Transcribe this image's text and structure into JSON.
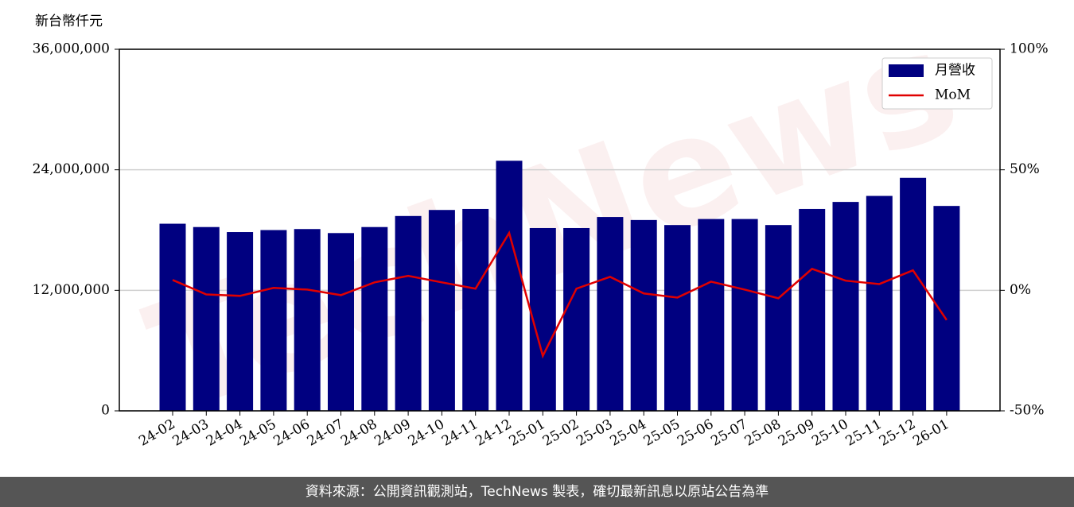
{
  "chart_data": {
    "type": "bar",
    "y_label": "新台幣仟元",
    "watermark": "TechNews",
    "categories": [
      "24-02",
      "24-03",
      "24-04",
      "24-05",
      "24-06",
      "24-07",
      "24-08",
      "24-09",
      "24-10",
      "24-11",
      "24-12",
      "25-01",
      "25-02",
      "25-03",
      "25-04",
      "25-05",
      "25-06",
      "25-07",
      "25-08",
      "25-09",
      "25-10",
      "25-11",
      "25-12",
      "26-01"
    ],
    "series": [
      {
        "name": "月營收",
        "color": "#000080",
        "type": "bar",
        "values": [
          18630000,
          18300000,
          17800000,
          18000000,
          18100000,
          17700000,
          18300000,
          19400000,
          20000000,
          20100000,
          24900000,
          18200000,
          18200000,
          19300000,
          19000000,
          18500000,
          19100000,
          19100000,
          18500000,
          20100000,
          20800000,
          21400000,
          23200000,
          20400000
        ]
      },
      {
        "name": "MoM",
        "color": "#e00000",
        "type": "line",
        "axis": "y2",
        "values": [
          4.3,
          -1.7,
          -2.3,
          1.0,
          0.3,
          -2.0,
          3.3,
          6.0,
          3.3,
          0.7,
          23.8,
          -27.2,
          0.7,
          5.6,
          -1.3,
          -3.0,
          3.6,
          0.3,
          -3.3,
          8.9,
          4.0,
          2.6,
          8.3,
          -12.3
        ]
      }
    ],
    "ylim": [
      0,
      36000000
    ],
    "yticks": [
      0,
      {
        "value": 12000000,
        "label": "12,000,000"
      },
      {
        "value": 24000000,
        "label": "24,000,000"
      },
      {
        "value": 36000000,
        "label": "36,000,000"
      }
    ],
    "y2lim": [
      -50,
      100
    ],
    "y2ticks": [
      {
        "value": -50,
        "label": "-50%"
      },
      {
        "value": 0,
        "label": "0%"
      },
      {
        "value": 50,
        "label": "50%"
      },
      {
        "value": 100,
        "label": "100%"
      }
    ],
    "grid": true,
    "legend": "upper-right"
  },
  "footer": "資料來源：公開資訊觀測站，TechNews 製表，確切最新訊息以原站公告為準"
}
